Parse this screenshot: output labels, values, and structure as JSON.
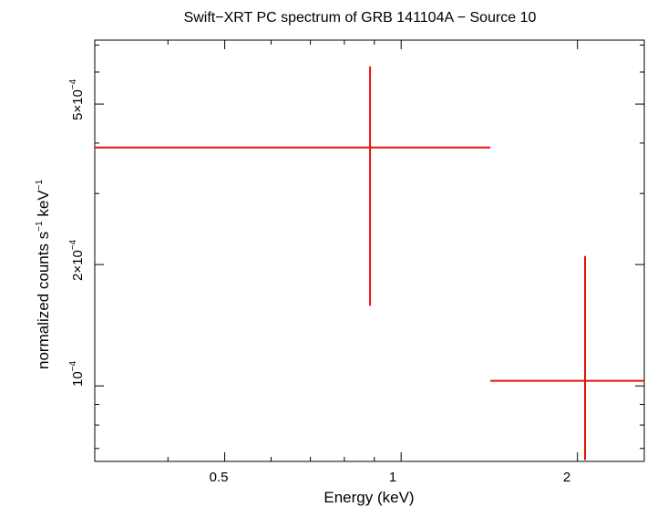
{
  "chart_data": {
    "type": "scatter",
    "title": "Swift−XRT PC spectrum of GRB 141104A − Source 10",
    "xlabel": "Energy (keV)",
    "ylabel": {
      "prefix": "normalized counts s",
      "mid": " keV",
      "exp": "−1"
    },
    "x_scale": "log",
    "y_scale": "log",
    "xlim": [
      0.3,
      2.6
    ],
    "ylim": [
      6.5e-05,
      0.00072
    ],
    "x_tick_labels": [
      {
        "value": 0.5,
        "label": "0.5"
      },
      {
        "value": 1,
        "label": "1"
      },
      {
        "value": 2,
        "label": "2"
      }
    ],
    "y_tick_labels": [
      {
        "value": 0.0001,
        "mantissa": "10",
        "exp": "−4"
      },
      {
        "value": 0.0002,
        "mantissa": "2×10",
        "exp": "−4"
      },
      {
        "value": 0.0005,
        "mantissa": "5×10",
        "exp": "−4"
      }
    ],
    "series": [
      {
        "color": "#e8120c",
        "points": [
          {
            "x": 0.885,
            "xlo": 0.3,
            "xhi": 1.42,
            "y": 0.00039,
            "ylo": 0.000158,
            "yhi": 0.00062
          },
          {
            "x": 2.06,
            "xlo": 1.42,
            "xhi": 2.6,
            "y": 0.000103,
            "ylo": 6.55e-05,
            "yhi": 0.00021
          }
        ]
      }
    ]
  }
}
